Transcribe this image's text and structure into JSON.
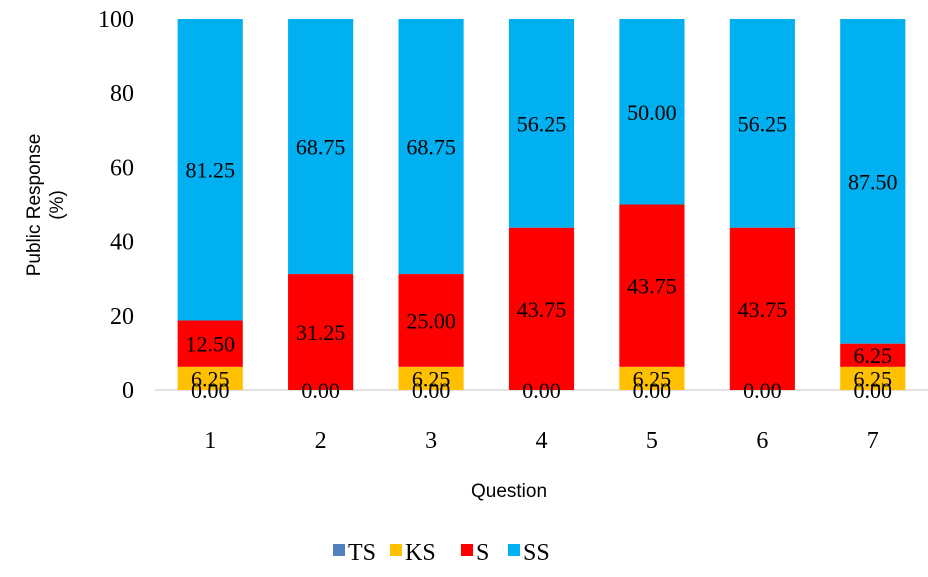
{
  "chart_data": {
    "type": "bar",
    "stacked": true,
    "title": "",
    "xlabel": "Question",
    "ylabel_lines": [
      "Public Response",
      "(%)"
    ],
    "ylim": [
      0,
      100
    ],
    "y_ticks": [
      0,
      20,
      40,
      60,
      80,
      100
    ],
    "categories": [
      "1",
      "2",
      "3",
      "4",
      "5",
      "6",
      "7"
    ],
    "series": [
      {
        "name": "TS",
        "color": "#4f81bd",
        "values": [
          0,
          0,
          0,
          0,
          0,
          0,
          0
        ],
        "labels": [
          "0.00",
          "0.00",
          "0.00",
          "0.00",
          "0.00",
          "0.00",
          "0.00"
        ]
      },
      {
        "name": "KS",
        "color": "#ffc000",
        "values": [
          6.25,
          0,
          6.25,
          0,
          6.25,
          0,
          6.25
        ],
        "labels": [
          "6.25",
          "",
          "6.25",
          "",
          "6.25",
          "",
          "6.25"
        ]
      },
      {
        "name": "S",
        "color": "#ff0000",
        "values": [
          12.5,
          31.25,
          25.0,
          43.75,
          43.75,
          43.75,
          6.25
        ],
        "labels": [
          "12.50",
          "31.25",
          "25.00",
          "43.75",
          "43.75",
          "43.75",
          "6.25"
        ]
      },
      {
        "name": "SS",
        "color": "#00b0f0",
        "values": [
          81.25,
          68.75,
          68.75,
          56.25,
          50.0,
          56.25,
          87.5
        ],
        "labels": [
          "81.25",
          "68.75",
          "68.75",
          "56.25",
          "50.00",
          "56.25",
          "87.50"
        ]
      }
    ],
    "grid": false,
    "legend_position": "bottom"
  }
}
